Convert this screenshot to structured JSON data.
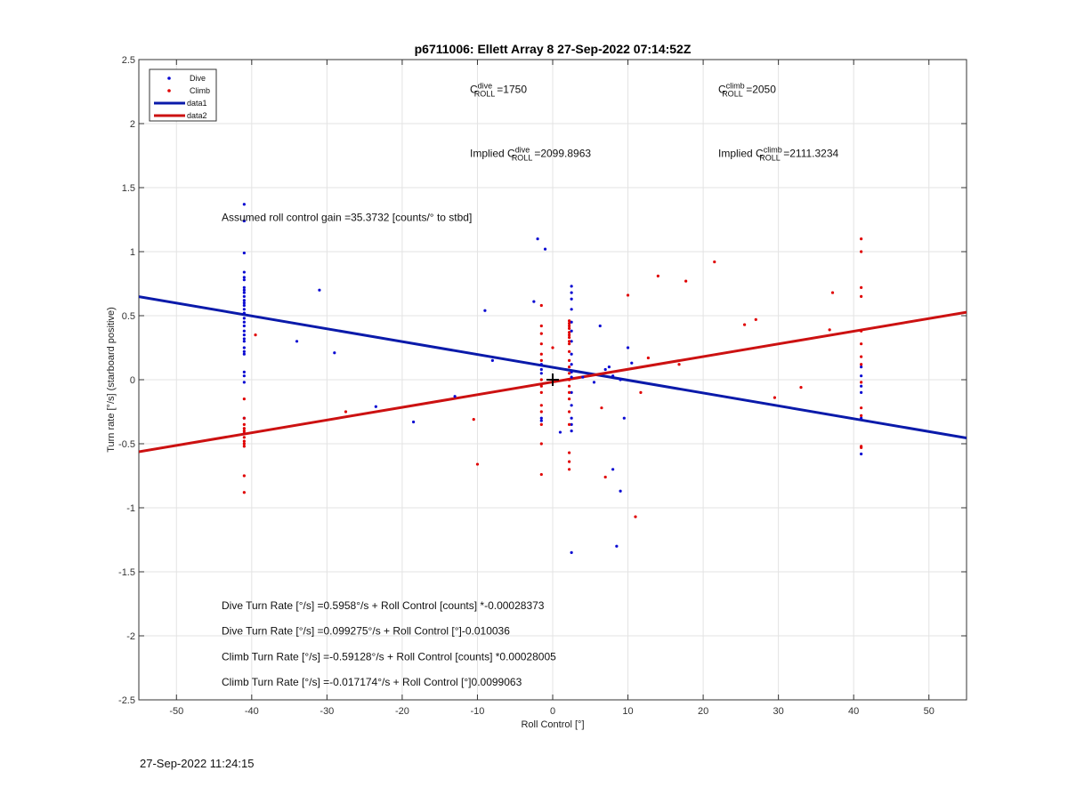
{
  "chart_data": {
    "type": "scatter",
    "title": "p6711006: Ellett Array 8 27-Sep-2022 07:14:52Z",
    "xlabel": "Roll Control [°]",
    "ylabel": "Turn rate [°/s] (starboard positive)",
    "xlim": [
      -55,
      55
    ],
    "ylim": [
      -2.5,
      2.5
    ],
    "xticks": [
      -50,
      -40,
      -30,
      -20,
      -10,
      0,
      10,
      20,
      30,
      40,
      50
    ],
    "yticks": [
      -2.5,
      -2,
      -1.5,
      -1,
      -0.5,
      0,
      0.5,
      1,
      1.5,
      2,
      2.5
    ],
    "grid": true,
    "legend_position": "top-left",
    "legend": [
      "Dive",
      "Climb",
      "data1",
      "data2"
    ],
    "colors": {
      "dive": "#0a0ad2",
      "climb": "#e00000",
      "data1": "#0a1aaa",
      "data2": "#cc1111"
    },
    "series": [
      {
        "name": "Dive",
        "kind": "points",
        "points": [
          [
            -41,
            1.37
          ],
          [
            -41,
            1.24
          ],
          [
            -41,
            0.99
          ],
          [
            -41,
            0.84
          ],
          [
            -41,
            0.8
          ],
          [
            -41,
            0.78
          ],
          [
            -41,
            0.72
          ],
          [
            -41,
            0.7
          ],
          [
            -41,
            0.68
          ],
          [
            -41,
            0.65
          ],
          [
            -41,
            0.62
          ],
          [
            -41,
            0.6
          ],
          [
            -41,
            0.58
          ],
          [
            -41,
            0.55
          ],
          [
            -41,
            0.52
          ],
          [
            -41,
            0.48
          ],
          [
            -41,
            0.45
          ],
          [
            -41,
            0.42
          ],
          [
            -41,
            0.38
          ],
          [
            -41,
            0.35
          ],
          [
            -41,
            0.32
          ],
          [
            -41,
            0.3
          ],
          [
            -41,
            0.25
          ],
          [
            -41,
            0.22
          ],
          [
            -41,
            0.2
          ],
          [
            -41,
            0.06
          ],
          [
            -41,
            0.03
          ],
          [
            -41,
            -0.02
          ],
          [
            -41,
            -0.3
          ],
          [
            -41,
            -0.42
          ],
          [
            -31,
            0.7
          ],
          [
            -34,
            0.3
          ],
          [
            -29,
            0.21
          ],
          [
            -23.5,
            -0.21
          ],
          [
            -18.5,
            -0.33
          ],
          [
            -13,
            -0.13
          ],
          [
            -9,
            0.54
          ],
          [
            -8,
            0.15
          ],
          [
            -2.5,
            0.61
          ],
          [
            -2,
            1.1
          ],
          [
            -1,
            1.02
          ],
          [
            -1.5,
            0.12
          ],
          [
            -1.5,
            0.08
          ],
          [
            -1.5,
            0.05
          ],
          [
            -1.5,
            -0.3
          ],
          [
            -1.5,
            -0.32
          ],
          [
            1,
            -0.41
          ],
          [
            2.5,
            -1.35
          ],
          [
            2.5,
            0.73
          ],
          [
            2.5,
            0.68
          ],
          [
            2.5,
            0.63
          ],
          [
            2.5,
            0.55
          ],
          [
            2.5,
            0.45
          ],
          [
            2.5,
            0.38
          ],
          [
            2.5,
            0.3
          ],
          [
            2.5,
            0.2
          ],
          [
            2.5,
            0.12
          ],
          [
            2.5,
            0.06
          ],
          [
            2.5,
            0.02
          ],
          [
            2.5,
            -0.1
          ],
          [
            2.5,
            -0.2
          ],
          [
            2.5,
            -0.3
          ],
          [
            2.5,
            -0.35
          ],
          [
            2.5,
            -0.4
          ],
          [
            4,
            0.02
          ],
          [
            5.5,
            -0.02
          ],
          [
            6.3,
            0.42
          ],
          [
            7,
            0.08
          ],
          [
            7.5,
            0.1
          ],
          [
            8,
            0.03
          ],
          [
            9,
            0.0
          ],
          [
            9.5,
            -0.3
          ],
          [
            10.5,
            0.13
          ],
          [
            10,
            0.25
          ],
          [
            8,
            -0.7
          ],
          [
            8.5,
            -1.3
          ],
          [
            9,
            -0.87
          ],
          [
            41,
            0.03
          ],
          [
            41,
            -0.05
          ],
          [
            41,
            -0.1
          ],
          [
            41,
            -0.3
          ],
          [
            41,
            -0.58
          ],
          [
            41,
            0.1
          ]
        ]
      },
      {
        "name": "Climb",
        "kind": "points",
        "points": [
          [
            -41,
            -0.15
          ],
          [
            -41,
            -0.3
          ],
          [
            -41,
            -0.35
          ],
          [
            -41,
            -0.38
          ],
          [
            -41,
            -0.4
          ],
          [
            -41,
            -0.42
          ],
          [
            -41,
            -0.45
          ],
          [
            -41,
            -0.48
          ],
          [
            -41,
            -0.5
          ],
          [
            -41,
            -0.52
          ],
          [
            -41,
            -0.75
          ],
          [
            -41,
            -0.88
          ],
          [
            -39.5,
            0.35
          ],
          [
            -27.5,
            -0.25
          ],
          [
            -10.5,
            -0.31
          ],
          [
            -10,
            -0.66
          ],
          [
            -1.5,
            0.58
          ],
          [
            -1.5,
            0.42
          ],
          [
            -1.5,
            0.36
          ],
          [
            -1.5,
            0.28
          ],
          [
            -1.5,
            0.2
          ],
          [
            -1.5,
            0.15
          ],
          [
            -1.5,
            0.0
          ],
          [
            -1.5,
            -0.05
          ],
          [
            -1.5,
            -0.1
          ],
          [
            -1.5,
            -0.2
          ],
          [
            -1.5,
            -0.25
          ],
          [
            -1.5,
            -0.35
          ],
          [
            -1.5,
            -0.5
          ],
          [
            -1.5,
            -0.74
          ],
          [
            0,
            0.25
          ],
          [
            2.2,
            0.46
          ],
          [
            2.2,
            0.44
          ],
          [
            2.2,
            0.42
          ],
          [
            2.2,
            0.4
          ],
          [
            2.2,
            0.37
          ],
          [
            2.2,
            0.35
          ],
          [
            2.2,
            0.33
          ],
          [
            2.2,
            0.3
          ],
          [
            2.2,
            0.28
          ],
          [
            2.2,
            0.22
          ],
          [
            2.2,
            0.15
          ],
          [
            2.2,
            0.1
          ],
          [
            2.2,
            0.05
          ],
          [
            2.2,
            0.0
          ],
          [
            2.2,
            -0.05
          ],
          [
            2.2,
            -0.1
          ],
          [
            2.2,
            -0.15
          ],
          [
            2.2,
            -0.25
          ],
          [
            2.2,
            -0.35
          ],
          [
            2.2,
            -0.57
          ],
          [
            2.2,
            -0.64
          ],
          [
            2.2,
            -0.7
          ],
          [
            6.5,
            -0.22
          ],
          [
            7,
            -0.76
          ],
          [
            10,
            0.66
          ],
          [
            11,
            -1.07
          ],
          [
            11.7,
            -0.1
          ],
          [
            12.7,
            0.17
          ],
          [
            14,
            0.81
          ],
          [
            16.8,
            0.12
          ],
          [
            17.7,
            0.77
          ],
          [
            21.5,
            0.92
          ],
          [
            25.5,
            0.43
          ],
          [
            27,
            0.47
          ],
          [
            29.5,
            -0.14
          ],
          [
            33,
            -0.06
          ],
          [
            36.8,
            0.39
          ],
          [
            37.2,
            0.68
          ],
          [
            41,
            1.1
          ],
          [
            41,
            1.0
          ],
          [
            41,
            0.72
          ],
          [
            41,
            0.65
          ],
          [
            41,
            0.38
          ],
          [
            41,
            0.28
          ],
          [
            41,
            0.18
          ],
          [
            41,
            0.12
          ],
          [
            41,
            -0.02
          ],
          [
            41,
            -0.22
          ],
          [
            41,
            -0.28
          ],
          [
            41,
            -0.52
          ],
          [
            41,
            -0.53
          ]
        ]
      },
      {
        "name": "data1",
        "kind": "line",
        "x": [
          -55,
          55
        ],
        "y": [
          0.6486,
          -0.4549
        ]
      },
      {
        "name": "data2",
        "kind": "line",
        "x": [
          -55,
          55
        ],
        "y": [
          -0.5625,
          0.5272
        ]
      }
    ],
    "marker": {
      "x": 0,
      "y": 0,
      "symbol": "+"
    },
    "annotations": [
      {
        "text": "=1750",
        "base": "C",
        "sup": "dive",
        "sub": "ROLL",
        "prefix": "",
        "at": [
          -11,
          2.24
        ]
      },
      {
        "text": "=2050",
        "base": "C",
        "sup": "climb",
        "sub": "ROLL",
        "prefix": "",
        "at": [
          22,
          2.24
        ]
      },
      {
        "text": "=2099.8963",
        "base": "C",
        "sup": "dive",
        "sub": "ROLL",
        "prefix": "Implied ",
        "at": [
          -11,
          1.74
        ]
      },
      {
        "text": "=2111.3234",
        "base": "C",
        "sup": "climb",
        "sub": "ROLL",
        "prefix": "Implied ",
        "at": [
          22,
          1.74
        ]
      },
      {
        "text": "Assumed roll control gain =35.3732 [counts/° to stbd]",
        "at": [
          -44,
          1.24
        ]
      },
      {
        "text": "Dive Turn Rate [°/s] =0.5958°/s + Roll Control [counts] *-0.00028373",
        "at": [
          -44,
          -1.79
        ]
      },
      {
        "text": "Dive Turn Rate [°/s] =0.099275°/s + Roll Control [°]-0.010036",
        "at": [
          -44,
          -1.99
        ]
      },
      {
        "text": "Climb Turn Rate [°/s] =-0.59128°/s + Roll Control [counts] *0.00028005",
        "at": [
          -44,
          -2.19
        ]
      },
      {
        "text": "Climb Turn Rate [°/s] =-0.017174°/s + Roll Control [°]0.0099063",
        "at": [
          -44,
          -2.39
        ]
      }
    ]
  },
  "footer": {
    "timestamp": "27-Sep-2022 11:24:15"
  }
}
